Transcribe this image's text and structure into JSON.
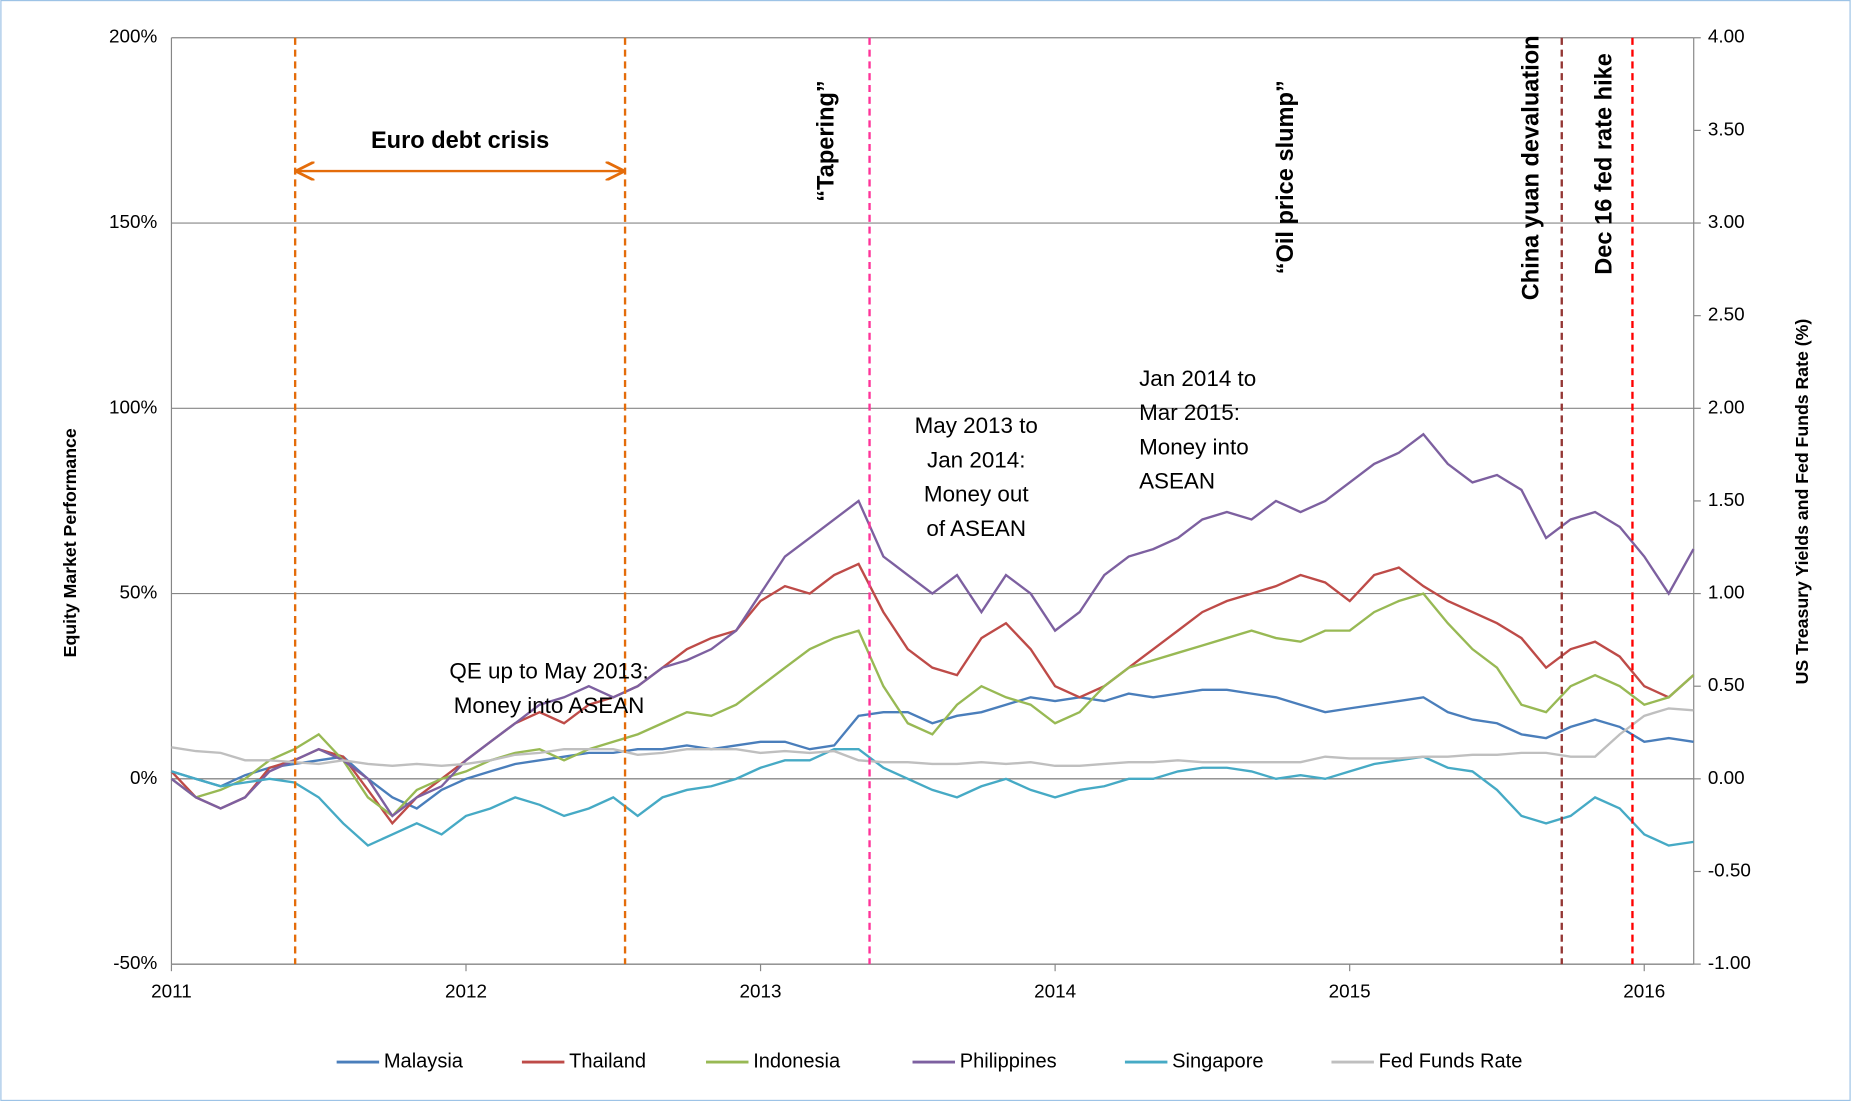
{
  "chart_data": {
    "type": "line",
    "y_label": "Equity Market Performance",
    "y2_label": "US Treasury Yields and Fed Funds Rate (%)",
    "x": [
      2011,
      2011.083,
      2011.167,
      2011.25,
      2011.333,
      2011.417,
      2011.5,
      2011.583,
      2011.667,
      2011.75,
      2011.833,
      2011.917,
      2012,
      2012.083,
      2012.167,
      2012.25,
      2012.333,
      2012.417,
      2012.5,
      2012.583,
      2012.667,
      2012.75,
      2012.833,
      2012.917,
      2013,
      2013.083,
      2013.167,
      2013.25,
      2013.333,
      2013.417,
      2013.5,
      2013.583,
      2013.667,
      2013.75,
      2013.833,
      2013.917,
      2014,
      2014.083,
      2014.167,
      2014.25,
      2014.333,
      2014.417,
      2014.5,
      2014.583,
      2014.667,
      2014.75,
      2014.833,
      2014.917,
      2015,
      2015.083,
      2015.167,
      2015.25,
      2015.333,
      2015.417,
      2015.5,
      2015.583,
      2015.667,
      2015.75,
      2015.833,
      2015.917,
      2016,
      2016.083,
      2016.167
    ],
    "xlim": [
      2011,
      2016.168
    ],
    "xticks": [
      2011,
      2012,
      2013,
      2014,
      2015,
      2016
    ],
    "ylim": [
      -50,
      200
    ],
    "yticks": [
      {
        "value": -50,
        "label": "-50%"
      },
      {
        "value": 0,
        "label": "0%"
      },
      {
        "value": 50,
        "label": "50%"
      },
      {
        "value": 100,
        "label": "100%"
      },
      {
        "value": 150,
        "label": "150%"
      },
      {
        "value": 200,
        "label": "200%"
      }
    ],
    "y2lim": [
      -1,
      4
    ],
    "y2ticks": [
      {
        "value": -1,
        "label": "-1.00"
      },
      {
        "value": -0.5,
        "label": "-0.50"
      },
      {
        "value": 0,
        "label": "0.00"
      },
      {
        "value": 0.5,
        "label": "0.50"
      },
      {
        "value": 1,
        "label": "1.00"
      },
      {
        "value": 1.5,
        "label": "1.50"
      },
      {
        "value": 2,
        "label": "2.00"
      },
      {
        "value": 2.5,
        "label": "2.50"
      },
      {
        "value": 3,
        "label": "3.00"
      },
      {
        "value": 3.5,
        "label": "3.50"
      },
      {
        "value": 4,
        "label": "4.00"
      }
    ],
    "grid": true,
    "legend": "bottom",
    "series": [
      {
        "name": "Malaysia",
        "color": "#4a7ebb",
        "values": [
          2,
          0,
          -2,
          1,
          3,
          4,
          5,
          6,
          0,
          -5,
          -8,
          -3,
          0,
          2,
          4,
          5,
          6,
          7,
          7,
          8,
          8,
          9,
          8,
          9,
          10,
          10,
          8,
          9,
          17,
          18,
          18,
          15,
          17,
          18,
          20,
          22,
          21,
          22,
          21,
          23,
          22,
          23,
          24,
          24,
          23,
          22,
          20,
          18,
          19,
          20,
          21,
          22,
          18,
          16,
          15,
          12,
          11,
          14,
          16,
          14,
          10,
          11,
          10
        ]
      },
      {
        "name": "Thailand",
        "color": "#be4b48",
        "values": [
          2,
          -5,
          -8,
          -5,
          3,
          5,
          8,
          6,
          -3,
          -12,
          -5,
          0,
          5,
          10,
          15,
          18,
          15,
          20,
          22,
          25,
          30,
          35,
          38,
          40,
          48,
          52,
          50,
          55,
          58,
          45,
          35,
          30,
          28,
          38,
          42,
          35,
          25,
          22,
          25,
          30,
          35,
          40,
          45,
          48,
          50,
          52,
          55,
          53,
          48,
          55,
          57,
          52,
          48,
          45,
          42,
          38,
          30,
          35,
          37,
          33,
          25,
          22,
          28
        ]
      },
      {
        "name": "Indonesia",
        "color": "#98b954",
        "values": [
          0,
          -5,
          -3,
          0,
          5,
          8,
          12,
          5,
          -5,
          -10,
          -3,
          0,
          2,
          5,
          7,
          8,
          5,
          8,
          10,
          12,
          15,
          18,
          17,
          20,
          25,
          30,
          35,
          38,
          40,
          25,
          15,
          12,
          20,
          25,
          22,
          20,
          15,
          18,
          25,
          30,
          32,
          34,
          36,
          38,
          40,
          38,
          37,
          40,
          40,
          45,
          48,
          50,
          42,
          35,
          30,
          20,
          18,
          25,
          28,
          25,
          20,
          22,
          28
        ]
      },
      {
        "name": "Philippines",
        "color": "#7d60a0",
        "values": [
          0,
          -5,
          -8,
          -5,
          2,
          5,
          8,
          5,
          0,
          -10,
          -5,
          -2,
          5,
          10,
          15,
          20,
          22,
          25,
          22,
          25,
          30,
          32,
          35,
          40,
          50,
          60,
          65,
          70,
          75,
          60,
          55,
          50,
          55,
          45,
          55,
          50,
          40,
          45,
          55,
          60,
          62,
          65,
          70,
          72,
          70,
          75,
          72,
          75,
          80,
          85,
          88,
          93,
          85,
          80,
          82,
          78,
          65,
          70,
          72,
          68,
          60,
          50,
          62
        ]
      },
      {
        "name": "Singapore",
        "color": "#46aac5",
        "values": [
          2,
          0,
          -2,
          -1,
          0,
          -1,
          -5,
          -12,
          -18,
          -15,
          -12,
          -15,
          -10,
          -8,
          -5,
          -7,
          -10,
          -8,
          -5,
          -10,
          -5,
          -3,
          -2,
          0,
          3,
          5,
          5,
          8,
          8,
          3,
          0,
          -3,
          -5,
          -2,
          0,
          -3,
          -5,
          -3,
          -2,
          0,
          0,
          2,
          3,
          3,
          2,
          0,
          1,
          0,
          2,
          4,
          5,
          6,
          3,
          2,
          -3,
          -10,
          -12,
          -10,
          -5,
          -8,
          -15,
          -18,
          -17
        ]
      },
      {
        "name": "Fed Funds Rate",
        "color": "#bfbfbf",
        "axis": "y2",
        "values": [
          0.17,
          0.15,
          0.14,
          0.1,
          0.1,
          0.09,
          0.08,
          0.1,
          0.08,
          0.07,
          0.08,
          0.07,
          0.08,
          0.1,
          0.13,
          0.14,
          0.16,
          0.16,
          0.16,
          0.13,
          0.14,
          0.16,
          0.16,
          0.16,
          0.14,
          0.15,
          0.14,
          0.15,
          0.1,
          0.09,
          0.09,
          0.08,
          0.08,
          0.09,
          0.08,
          0.09,
          0.07,
          0.07,
          0.08,
          0.09,
          0.09,
          0.1,
          0.09,
          0.09,
          0.09,
          0.09,
          0.09,
          0.12,
          0.11,
          0.11,
          0.11,
          0.12,
          0.12,
          0.13,
          0.13,
          0.14,
          0.14,
          0.12,
          0.12,
          0.24,
          0.34,
          0.38,
          0.37
        ]
      }
    ],
    "events": [
      {
        "label": "Euro debt crisis",
        "x": [
          2011.42,
          2012.54
        ],
        "color": "#e46c0a"
      },
      {
        "label": "“Tapering”",
        "x": [
          2013.37
        ],
        "color": "#ff3399"
      },
      {
        "label": "“Oil price slump”",
        "color": "#00853e"
      },
      {
        "label": "China yuan devaluation",
        "x": [
          2015.72
        ],
        "color": "#943634"
      },
      {
        "label": "Dec 16 fed rate hike",
        "x": [
          2015.96
        ],
        "color": "#ff0000"
      }
    ],
    "notes": [
      {
        "lines": [
          "QE up to May 2013:",
          "Money into ASEAN"
        ]
      },
      {
        "lines": [
          "May 2013 to",
          "Jan 2014:",
          "Money out",
          "of ASEAN"
        ]
      },
      {
        "lines": [
          "Jan 2014 to",
          "Mar 2015:",
          "Money into",
          "ASEAN"
        ]
      }
    ]
  }
}
